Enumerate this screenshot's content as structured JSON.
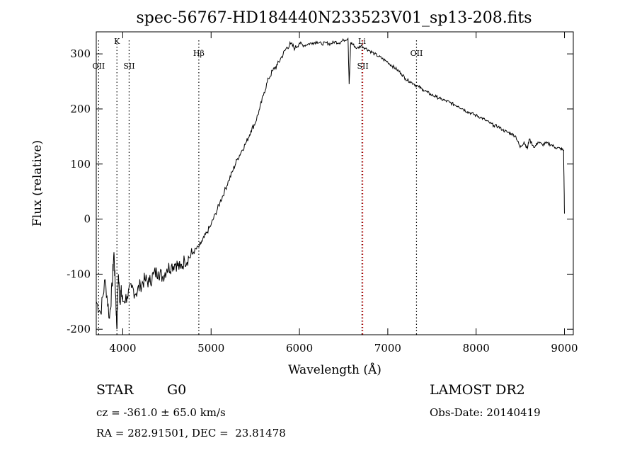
{
  "chart_data": {
    "type": "line",
    "title": "spec-56767-HD184440N233523V01_sp13-208.fits",
    "xlabel": "Wavelength (Å)",
    "ylabel": "Flux (relative)",
    "xlim": [
      3700,
      9100
    ],
    "ylim": [
      -210,
      340
    ],
    "xticks": [
      4000,
      5000,
      6000,
      7000,
      8000,
      9000
    ],
    "yticks": [
      -200,
      -100,
      0,
      100,
      200,
      300
    ],
    "grid": false,
    "series": [
      {
        "color": "#000000",
        "x": [
          3700,
          3750,
          3800,
          3850,
          3880,
          3900,
          3920,
          3933,
          3950,
          3968,
          3980,
          4000,
          4050,
          4100,
          4150,
          4200,
          4250,
          4300,
          4350,
          4400,
          4450,
          4500,
          4550,
          4600,
          4650,
          4700,
          4750,
          4800,
          4861,
          4900,
          4950,
          5000,
          5050,
          5100,
          5150,
          5200,
          5250,
          5300,
          5350,
          5400,
          5450,
          5500,
          5550,
          5600,
          5650,
          5700,
          5750,
          5800,
          5850,
          5900,
          5950,
          6000,
          6050,
          6100,
          6150,
          6200,
          6250,
          6300,
          6350,
          6400,
          6450,
          6500,
          6550,
          6563,
          6580,
          6600,
          6650,
          6700,
          6750,
          6800,
          6850,
          6900,
          6950,
          7000,
          7050,
          7100,
          7150,
          7200,
          7250,
          7300,
          7350,
          7400,
          7450,
          7500,
          7550,
          7600,
          7650,
          7700,
          7750,
          7800,
          7850,
          7900,
          7950,
          8000,
          8050,
          8100,
          8150,
          8200,
          8250,
          8300,
          8350,
          8400,
          8450,
          8498,
          8542,
          8580,
          8600,
          8662,
          8700,
          8750,
          8800,
          8850,
          8900,
          8950,
          8990,
          9000
        ],
        "y": [
          -150,
          -170,
          -110,
          -180,
          -120,
          -60,
          -140,
          -200,
          -100,
          -150,
          -130,
          -150,
          -140,
          -125,
          -135,
          -120,
          -110,
          -115,
          -100,
          -95,
          -105,
          -90,
          -85,
          -80,
          -90,
          -75,
          -70,
          -60,
          -50,
          -40,
          -25,
          -10,
          10,
          30,
          50,
          70,
          90,
          110,
          125,
          140,
          160,
          175,
          200,
          230,
          255,
          270,
          280,
          295,
          310,
          318,
          310,
          320,
          315,
          318,
          320,
          322,
          318,
          320,
          318,
          322,
          320,
          325,
          328,
          245,
          320,
          318,
          310,
          315,
          310,
          305,
          300,
          295,
          290,
          285,
          278,
          272,
          265,
          255,
          250,
          245,
          240,
          235,
          230,
          225,
          222,
          218,
          215,
          212,
          208,
          205,
          200,
          195,
          192,
          188,
          185,
          180,
          175,
          170,
          168,
          162,
          158,
          155,
          150,
          130,
          140,
          128,
          145,
          130,
          140,
          135,
          138,
          135,
          130,
          128,
          125,
          10
        ]
      }
    ],
    "line_markers": [
      {
        "label": "OII",
        "wavelength": 3727,
        "row": "low",
        "color": "#000000"
      },
      {
        "label": "K",
        "wavelength": 3934,
        "row": "high",
        "color": "#000000"
      },
      {
        "label": "SII",
        "wavelength": 4072,
        "row": "low",
        "color": "#000000"
      },
      {
        "label": "Hβ",
        "wavelength": 4861,
        "row": "mid",
        "color": "#000000"
      },
      {
        "label": "Li",
        "wavelength": 6708,
        "row": "high",
        "color": "#000000"
      },
      {
        "label": "SII",
        "wavelength": 6717,
        "row": "low",
        "color": "#ff0000"
      },
      {
        "label": "OII",
        "wavelength": 7325,
        "row": "mid",
        "color": "#000000"
      }
    ]
  },
  "info": {
    "class_label": "STAR",
    "subclass": "G0",
    "survey": "LAMOST DR2",
    "cz": "cz = -361.0 ± 65.0 km/s",
    "obs_date": "Obs-Date: 20140419",
    "radec": "RA = 282.91501, DEC =  23.81478"
  }
}
